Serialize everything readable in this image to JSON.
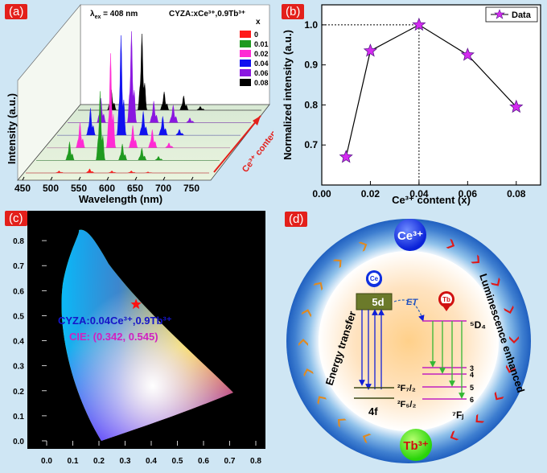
{
  "panels": {
    "a": {
      "tag": "(a)",
      "title_lambda": "λ",
      "title_sub": "ex",
      "title_rest": " = 408 nm",
      "compound": "CYZA:xCe³⁺,0.9Tb³⁺",
      "legend_title": "x",
      "ylabel": "Intensity (a.u.)",
      "xlabel": "Wavelength (nm)",
      "arrow_label": "Ce³⁺ content",
      "xticks": [
        "450",
        "500",
        "550",
        "600",
        "650",
        "700",
        "750"
      ],
      "series": [
        {
          "name": "0",
          "color": "#ff1a1a"
        },
        {
          "name": "0.01",
          "color": "#1f9a1f"
        },
        {
          "name": "0.02",
          "color": "#ff2ad4"
        },
        {
          "name": "0.04",
          "color": "#1010f0"
        },
        {
          "name": "0.06",
          "color": "#8a16e0"
        },
        {
          "name": "0.08",
          "color": "#000000"
        }
      ]
    },
    "b": {
      "tag": "(b)",
      "legend": "Data",
      "ylabel": "Normalized intensity (a.u.)",
      "xlabel": "Ce³⁺ content (x)",
      "dotted_label_y": "1.0"
    },
    "c": {
      "tag": "(c)",
      "compound": "CYZA:0.04Ce³⁺,0.9Tb³⁺",
      "cie": "CIE: (0.342, 0.545)",
      "xticks": [
        "0.0",
        "0.1",
        "0.2",
        "0.3",
        "0.4",
        "0.5",
        "0.6",
        "0.7",
        "0.8"
      ],
      "yticks": [
        "0.0",
        "0.1",
        "0.2",
        "0.3",
        "0.4",
        "0.5",
        "0.6",
        "0.7",
        "0.8"
      ]
    },
    "d": {
      "tag": "(d)",
      "ce_badge": "Ce³⁺",
      "tb_badge": "Tb³⁺",
      "ce_pin": "Ce",
      "tb_pin": "Tb",
      "energy_transfer": "Energy transfer",
      "luminescence": "Luminescence enhanced",
      "level_5d": "5d",
      "et": "ET",
      "level_5d4": "⁵D₄",
      "level_2f72": "²F₇/₂",
      "level_2f52": "²F₅/₂",
      "level_4f": "4f",
      "level_7fj": "⁷Fⱼ",
      "j_levels": [
        "3",
        "4",
        "5",
        "6"
      ]
    }
  },
  "chart_data": [
    {
      "type": "line",
      "panel": "a",
      "title": "λex = 408 nm  CYZA:xCe³⁺,0.9Tb³⁺",
      "xlabel": "Wavelength (nm)",
      "ylabel": "Intensity (a.u.)",
      "xlim": [
        430,
        760
      ],
      "peaks_nm": [
        490,
        545,
        585,
        620,
        650
      ],
      "series": [
        {
          "name": "0",
          "peak_heights": [
            0.02,
            0.04,
            0.02,
            0.02,
            0.01
          ]
        },
        {
          "name": "0.01",
          "peak_heights": [
            0.18,
            0.67,
            0.16,
            0.12,
            0.04
          ]
        },
        {
          "name": "0.02",
          "peak_heights": [
            0.25,
            0.93,
            0.22,
            0.18,
            0.05
          ]
        },
        {
          "name": "0.04",
          "peak_heights": [
            0.27,
            1.0,
            0.24,
            0.19,
            0.06
          ]
        },
        {
          "name": "0.06",
          "peak_heights": [
            0.25,
            0.93,
            0.22,
            0.18,
            0.05
          ]
        },
        {
          "name": "0.08",
          "peak_heights": [
            0.21,
            0.79,
            0.19,
            0.15,
            0.04
          ]
        }
      ]
    },
    {
      "type": "line",
      "panel": "b",
      "title": "",
      "xlabel": "Ce³⁺ content (x)",
      "ylabel": "Normalized intensity (a.u.)",
      "x": [
        0.01,
        0.02,
        0.04,
        0.06,
        0.08
      ],
      "series": [
        {
          "name": "Data",
          "values": [
            0.67,
            0.935,
            1.0,
            0.925,
            0.795
          ]
        }
      ],
      "xlim": [
        0.0,
        0.09
      ],
      "ylim": [
        0.6,
        1.05
      ],
      "xticks": [
        "0.00",
        "0.02",
        "0.04",
        "0.06",
        "0.08"
      ],
      "yticks": [
        "0.7",
        "0.8",
        "0.9",
        "1.0"
      ],
      "legend": "top-right"
    },
    {
      "type": "scatter",
      "panel": "c",
      "title": "",
      "xlabel": "",
      "ylabel": "",
      "points": [
        {
          "name": "CYZA:0.04Ce³⁺,0.9Tb³⁺",
          "x": 0.342,
          "y": 0.545
        }
      ],
      "xlim": [
        0.0,
        0.8
      ],
      "ylim": [
        0.0,
        0.9
      ]
    }
  ]
}
